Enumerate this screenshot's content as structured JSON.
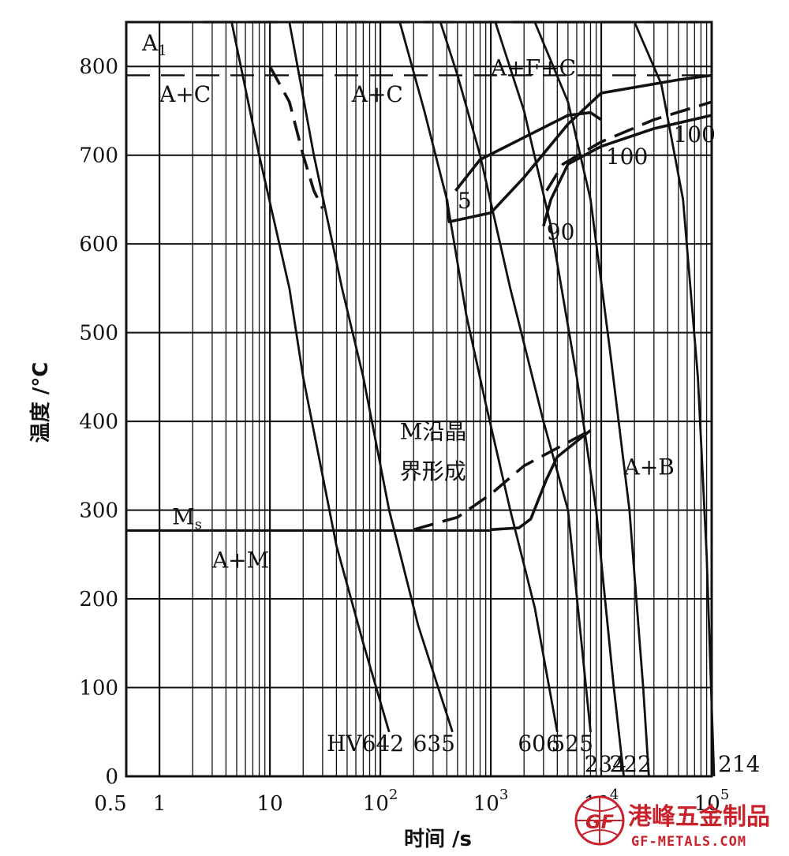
{
  "chart_data": {
    "type": "line",
    "title": "",
    "xlabel": "时间 /s",
    "ylabel": "温度 /°C",
    "x_scale": "log",
    "xlim": [
      0.5,
      100000
    ],
    "ylim": [
      0,
      850
    ],
    "x_tick_labels": [
      {
        "value": 0.5,
        "label": "0.5"
      },
      {
        "value": 1,
        "label": "1"
      },
      {
        "value": 10,
        "label": "10"
      },
      {
        "value": 100,
        "label": "10^2"
      },
      {
        "value": 1000,
        "label": "10^3"
      },
      {
        "value": 10000,
        "label": "10^4"
      },
      {
        "value": 100000,
        "label": "10^5"
      }
    ],
    "y_ticks": [
      0,
      100,
      200,
      300,
      400,
      500,
      600,
      700,
      800
    ],
    "grid": true,
    "reference_lines": [
      {
        "name": "A1",
        "label_main": "A",
        "label_sub": "1",
        "y": 850
      },
      {
        "name": "Ms",
        "label_main": "M",
        "label_sub": "s",
        "y": 277
      }
    ],
    "cooling_curves": [
      {
        "hardness": "HV642",
        "points": [
          [
            4.5,
            850
          ],
          [
            8,
            700
          ],
          [
            15,
            550
          ],
          [
            20,
            450
          ],
          [
            40,
            260
          ],
          [
            70,
            150
          ],
          [
            120,
            50
          ]
        ]
      },
      {
        "hardness": "635",
        "points": [
          [
            15,
            850
          ],
          [
            25,
            700
          ],
          [
            45,
            550
          ],
          [
            70,
            450
          ],
          [
            120,
            300
          ],
          [
            220,
            170
          ],
          [
            450,
            50
          ]
        ]
      },
      {
        "hardness": "606",
        "points": [
          [
            150,
            850
          ],
          [
            250,
            750
          ],
          [
            400,
            650
          ],
          [
            600,
            520
          ],
          [
            900,
            420
          ],
          [
            1500,
            300
          ],
          [
            2500,
            190
          ],
          [
            4000,
            50
          ]
        ]
      },
      {
        "hardness": "525",
        "points": [
          [
            350,
            850
          ],
          [
            500,
            790
          ],
          [
            800,
            700
          ],
          [
            1500,
            550
          ],
          [
            3000,
            400
          ],
          [
            5000,
            300
          ],
          [
            8000,
            50
          ]
        ]
      },
      {
        "hardness": "234",
        "points": [
          [
            1100,
            850
          ],
          [
            2000,
            750
          ],
          [
            3500,
            620
          ],
          [
            6000,
            450
          ],
          [
            9000,
            300
          ],
          [
            13000,
            100
          ],
          [
            16000,
            0
          ]
        ]
      },
      {
        "hardness": "222",
        "points": [
          [
            2500,
            850
          ],
          [
            5000,
            760
          ],
          [
            8000,
            650
          ],
          [
            12000,
            480
          ],
          [
            18000,
            300
          ],
          [
            24000,
            100
          ],
          [
            27000,
            0
          ]
        ]
      },
      {
        "hardness": "214",
        "points": [
          [
            20000,
            850
          ],
          [
            35000,
            780
          ],
          [
            55000,
            650
          ],
          [
            75000,
            450
          ],
          [
            90000,
            250
          ],
          [
            105000,
            0
          ]
        ]
      }
    ],
    "transformation_lines": [
      {
        "name": "pearlite-start",
        "style": "solid",
        "points": [
          [
            400,
            650
          ],
          [
            420,
            625
          ],
          [
            1000,
            635
          ],
          [
            2000,
            675
          ],
          [
            5000,
            735
          ],
          [
            10000,
            770
          ],
          [
            50000,
            785
          ],
          [
            100000,
            790
          ]
        ]
      },
      {
        "name": "pearlite-5",
        "style": "solid",
        "points": [
          [
            480,
            660
          ],
          [
            800,
            695
          ],
          [
            2000,
            720
          ],
          [
            5000,
            745
          ],
          [
            8000,
            748
          ],
          [
            10000,
            740
          ]
        ]
      },
      {
        "name": "pearlite-90",
        "style": "solid",
        "points": [
          [
            3000,
            620
          ],
          [
            3500,
            650
          ],
          [
            5000,
            690
          ],
          [
            10000,
            710
          ],
          [
            30000,
            730
          ],
          [
            100000,
            745
          ]
        ]
      },
      {
        "name": "pearlite-100",
        "style": "dashed",
        "points": [
          [
            3200,
            660
          ],
          [
            4500,
            690
          ],
          [
            10000,
            715
          ],
          [
            30000,
            740
          ],
          [
            100000,
            760
          ]
        ]
      },
      {
        "name": "bainite-start",
        "style": "solid",
        "points": [
          [
            1000,
            278
          ],
          [
            1800,
            280
          ],
          [
            2300,
            290
          ],
          [
            3200,
            335
          ],
          [
            4000,
            360
          ],
          [
            8000,
            390
          ]
        ]
      },
      {
        "name": "grain-boundary-M",
        "style": "dashed",
        "points": [
          [
            200,
            278
          ],
          [
            500,
            292
          ],
          [
            1000,
            318
          ],
          [
            2000,
            350
          ],
          [
            4000,
            370
          ],
          [
            8000,
            390
          ]
        ]
      },
      {
        "name": "upper-dashed",
        "style": "dashed",
        "points": [
          [
            10,
            800
          ],
          [
            15,
            760
          ],
          [
            20,
            700
          ],
          [
            25,
            660
          ],
          [
            30,
            640
          ]
        ]
      }
    ],
    "annotations": [
      {
        "text": "A+C",
        "x": 1,
        "y": 760
      },
      {
        "text": "A+C",
        "x": 55,
        "y": 760
      },
      {
        "text": "A+F+C",
        "x": 1000,
        "y": 790
      },
      {
        "text": "5",
        "x": 500,
        "y": 640
      },
      {
        "text": "90",
        "x": 3200,
        "y": 605
      },
      {
        "text": "100",
        "x": 11000,
        "y": 690
      },
      {
        "text": "100",
        "x": 45000,
        "y": 715
      },
      {
        "text": "M沿晶",
        "x": 150,
        "y": 380
      },
      {
        "text": "界形成",
        "x": 150,
        "y": 335
      },
      {
        "text": "A+B",
        "x": 16000,
        "y": 340
      },
      {
        "text": "A+M",
        "x": 3,
        "y": 235
      }
    ]
  },
  "watermark": {
    "cn": "港峰五金制品",
    "en": "GF-METALS.COM",
    "logo": "GF"
  }
}
